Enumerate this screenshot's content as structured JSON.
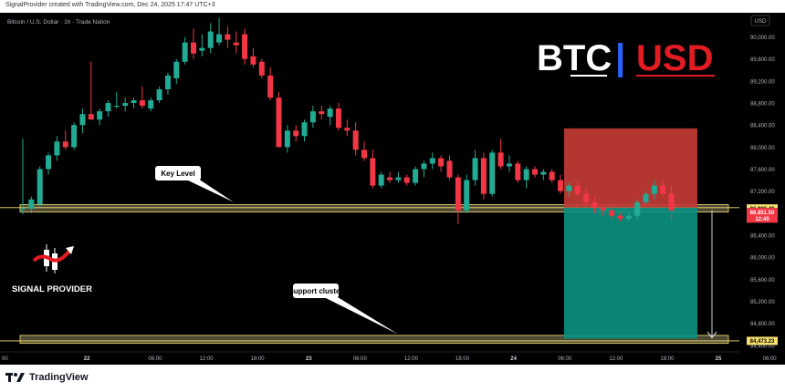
{
  "header": {
    "attribution": "SignalProvider created with TradingView.com, Dec 24, 2025 17:47 UTC+3"
  },
  "footer": {
    "logo_text": "TradingView"
  },
  "chart_data": {
    "type": "candlestick",
    "symbol_line": "Bitcoin / U.S. Dollar · 1h · Trade Nation",
    "brand": {
      "left": "BTC",
      "separator": "|",
      "right": "USD"
    },
    "watermark": "SIGNAL PROVIDER",
    "currency_button": "USD",
    "y_axis": {
      "range": [
        84280,
        90440
      ],
      "ticks": [
        {
          "value": 90000,
          "label": "90,000.00"
        },
        {
          "value": 89600,
          "label": "89,600.00"
        },
        {
          "value": 89200,
          "label": "89,200.00"
        },
        {
          "value": 88800,
          "label": "88,800.00"
        },
        {
          "value": 88400,
          "label": "88,400.00"
        },
        {
          "value": 88000,
          "label": "88,000.00"
        },
        {
          "value": 87600,
          "label": "87,600.00"
        },
        {
          "value": 87200,
          "label": "87,200.00"
        },
        {
          "value": 86400,
          "label": "86,400.00"
        },
        {
          "value": 86000,
          "label": "86,000.00"
        },
        {
          "value": 85600,
          "label": "85,600.00"
        },
        {
          "value": 85200,
          "label": "85,200.00"
        },
        {
          "value": 84800,
          "label": "84,800.00"
        },
        {
          "value": 84400,
          "label": "84,400.00"
        }
      ]
    },
    "x_axis": {
      "ticks": [
        {
          "bar": -2.5,
          "label": "00"
        },
        {
          "bar": 7.5,
          "label": "22"
        },
        {
          "bar": 15.5,
          "label": "06:00"
        },
        {
          "bar": 21.5,
          "label": "12:00"
        },
        {
          "bar": 27.5,
          "label": "18:00"
        },
        {
          "bar": 33.5,
          "label": "23"
        },
        {
          "bar": 39.5,
          "label": "06:00"
        },
        {
          "bar": 45.5,
          "label": "12:00"
        },
        {
          "bar": 51.5,
          "label": "18:00"
        },
        {
          "bar": 57.5,
          "label": "24"
        },
        {
          "bar": 63.5,
          "label": "06:00"
        },
        {
          "bar": 69.5,
          "label": "12:00"
        },
        {
          "bar": 75.5,
          "label": "18:00"
        },
        {
          "bar": 81.5,
          "label": "25"
        },
        {
          "bar": 87.5,
          "label": "06:00"
        },
        {
          "bar": 93.5,
          "label": "12:00"
        }
      ]
    },
    "candles": [
      {
        "o": 86870,
        "h": 88150,
        "l": 86780,
        "c": 86880
      },
      {
        "o": 86880,
        "h": 87100,
        "l": 86800,
        "c": 87050
      },
      {
        "o": 86960,
        "h": 87650,
        "l": 86900,
        "c": 87600
      },
      {
        "o": 87600,
        "h": 87900,
        "l": 87500,
        "c": 87850
      },
      {
        "o": 87850,
        "h": 88200,
        "l": 87750,
        "c": 88100
      },
      {
        "o": 88100,
        "h": 88300,
        "l": 87950,
        "c": 88000
      },
      {
        "o": 88000,
        "h": 88450,
        "l": 87950,
        "c": 88400
      },
      {
        "o": 88400,
        "h": 88700,
        "l": 88250,
        "c": 88600
      },
      {
        "o": 88600,
        "h": 89550,
        "l": 88500,
        "c": 88500
      },
      {
        "o": 88500,
        "h": 88700,
        "l": 88400,
        "c": 88650
      },
      {
        "o": 88650,
        "h": 88850,
        "l": 88550,
        "c": 88800
      },
      {
        "o": 88750,
        "h": 89000,
        "l": 88700,
        "c": 88750
      },
      {
        "o": 88750,
        "h": 88900,
        "l": 88650,
        "c": 88800
      },
      {
        "o": 88800,
        "h": 88900,
        "l": 88700,
        "c": 88850
      },
      {
        "o": 88850,
        "h": 89100,
        "l": 88700,
        "c": 88750
      },
      {
        "o": 88700,
        "h": 88900,
        "l": 88650,
        "c": 88850
      },
      {
        "o": 88850,
        "h": 89100,
        "l": 88800,
        "c": 89050
      },
      {
        "o": 89050,
        "h": 89350,
        "l": 88950,
        "c": 89300
      },
      {
        "o": 89250,
        "h": 89600,
        "l": 89150,
        "c": 89550
      },
      {
        "o": 89550,
        "h": 90000,
        "l": 89500,
        "c": 89900
      },
      {
        "o": 89900,
        "h": 90150,
        "l": 89600,
        "c": 89700
      },
      {
        "o": 89750,
        "h": 90050,
        "l": 89650,
        "c": 89800
      },
      {
        "o": 89800,
        "h": 90250,
        "l": 89700,
        "c": 90100
      },
      {
        "o": 89900,
        "h": 90350,
        "l": 89850,
        "c": 90050
      },
      {
        "o": 90050,
        "h": 90200,
        "l": 89800,
        "c": 89950
      },
      {
        "o": 89900,
        "h": 90100,
        "l": 89700,
        "c": 89850
      },
      {
        "o": 90050,
        "h": 90150,
        "l": 89500,
        "c": 89600
      },
      {
        "o": 89650,
        "h": 89800,
        "l": 89450,
        "c": 89500
      },
      {
        "o": 89550,
        "h": 89600,
        "l": 89250,
        "c": 89300
      },
      {
        "o": 89300,
        "h": 89450,
        "l": 88850,
        "c": 88900
      },
      {
        "o": 88900,
        "h": 89000,
        "l": 88000,
        "c": 88000
      },
      {
        "o": 88000,
        "h": 88400,
        "l": 87900,
        "c": 88300
      },
      {
        "o": 88300,
        "h": 88400,
        "l": 88100,
        "c": 88200
      },
      {
        "o": 88200,
        "h": 88500,
        "l": 88100,
        "c": 88450
      },
      {
        "o": 88450,
        "h": 88750,
        "l": 88350,
        "c": 88650
      },
      {
        "o": 88650,
        "h": 88750,
        "l": 88500,
        "c": 88600
      },
      {
        "o": 88550,
        "h": 88750,
        "l": 88400,
        "c": 88700
      },
      {
        "o": 88700,
        "h": 88800,
        "l": 88300,
        "c": 88350
      },
      {
        "o": 88350,
        "h": 88500,
        "l": 88200,
        "c": 88300
      },
      {
        "o": 88300,
        "h": 88450,
        "l": 87850,
        "c": 87950
      },
      {
        "o": 87950,
        "h": 88100,
        "l": 87750,
        "c": 87800
      },
      {
        "o": 87800,
        "h": 87950,
        "l": 87250,
        "c": 87300
      },
      {
        "o": 87300,
        "h": 87550,
        "l": 87250,
        "c": 87500
      },
      {
        "o": 87450,
        "h": 87550,
        "l": 87350,
        "c": 87400
      },
      {
        "o": 87400,
        "h": 87550,
        "l": 87350,
        "c": 87450
      },
      {
        "o": 87450,
        "h": 87500,
        "l": 87300,
        "c": 87350
      },
      {
        "o": 87350,
        "h": 87650,
        "l": 87300,
        "c": 87600
      },
      {
        "o": 87600,
        "h": 87750,
        "l": 87450,
        "c": 87700
      },
      {
        "o": 87700,
        "h": 87900,
        "l": 87600,
        "c": 87800
      },
      {
        "o": 87800,
        "h": 87850,
        "l": 87550,
        "c": 87650
      },
      {
        "o": 87750,
        "h": 87850,
        "l": 87400,
        "c": 87450
      },
      {
        "o": 87450,
        "h": 87500,
        "l": 86600,
        "c": 86850
      },
      {
        "o": 86850,
        "h": 87500,
        "l": 86800,
        "c": 87400
      },
      {
        "o": 87400,
        "h": 87950,
        "l": 87300,
        "c": 87800
      },
      {
        "o": 87800,
        "h": 87900,
        "l": 87050,
        "c": 87150
      },
      {
        "o": 87150,
        "h": 87950,
        "l": 87100,
        "c": 87900
      },
      {
        "o": 87900,
        "h": 88150,
        "l": 87600,
        "c": 87650
      },
      {
        "o": 87650,
        "h": 87850,
        "l": 87550,
        "c": 87700
      },
      {
        "o": 87700,
        "h": 87750,
        "l": 87350,
        "c": 87400
      },
      {
        "o": 87400,
        "h": 87650,
        "l": 87250,
        "c": 87600
      },
      {
        "o": 87600,
        "h": 87650,
        "l": 87450,
        "c": 87500
      },
      {
        "o": 87500,
        "h": 87600,
        "l": 87400,
        "c": 87550
      },
      {
        "o": 87550,
        "h": 87600,
        "l": 87350,
        "c": 87400
      },
      {
        "o": 87400,
        "h": 87500,
        "l": 87150,
        "c": 87200
      },
      {
        "o": 87200,
        "h": 87350,
        "l": 87100,
        "c": 87300
      },
      {
        "o": 87300,
        "h": 87400,
        "l": 87100,
        "c": 87150
      },
      {
        "o": 87150,
        "h": 87250,
        "l": 86950,
        "c": 87000
      },
      {
        "o": 87000,
        "h": 87100,
        "l": 86800,
        "c": 86900
      },
      {
        "o": 86900,
        "h": 86950,
        "l": 86750,
        "c": 86850
      },
      {
        "o": 86850,
        "h": 86950,
        "l": 86700,
        "c": 86750
      },
      {
        "o": 86750,
        "h": 86800,
        "l": 86650,
        "c": 86700
      },
      {
        "o": 86700,
        "h": 86800,
        "l": 86650,
        "c": 86750
      },
      {
        "o": 86750,
        "h": 87050,
        "l": 86700,
        "c": 87000
      },
      {
        "o": 87000,
        "h": 87200,
        "l": 86950,
        "c": 87150
      },
      {
        "o": 87150,
        "h": 87400,
        "l": 87050,
        "c": 87300
      },
      {
        "o": 87300,
        "h": 87400,
        "l": 87100,
        "c": 87150
      },
      {
        "o": 87150,
        "h": 87300,
        "l": 86650,
        "c": 86850
      }
    ],
    "key_level": {
      "label": "Key Level",
      "price": 86900
    },
    "support_cluster": {
      "label": "Support cluster",
      "price": 84520
    },
    "position": {
      "entry": 86900,
      "stop": 88340,
      "target": 84520
    },
    "price_labels": [
      {
        "text": "86,886.48",
        "price": 86886,
        "color": "#f7e06e"
      },
      {
        "text": "86,851.50",
        "price": 86820,
        "color": "#f23645"
      },
      {
        "text": "12:40",
        "price": 86700,
        "color": "#f23645"
      },
      {
        "text": "84,473.23",
        "price": 84480,
        "color": "#f7e06e"
      }
    ],
    "colors": {
      "up": "#22ab94",
      "down": "#f23645",
      "background": "#000000",
      "zone_fill": "#8a8560",
      "zone_border": "#f7e06e",
      "stop_zone": "#c23b34",
      "target_zone": "#0b8f7f",
      "brand_white": "#ffffff",
      "brand_red": "#e31b23",
      "brand_separator": "#2962ff"
    }
  }
}
